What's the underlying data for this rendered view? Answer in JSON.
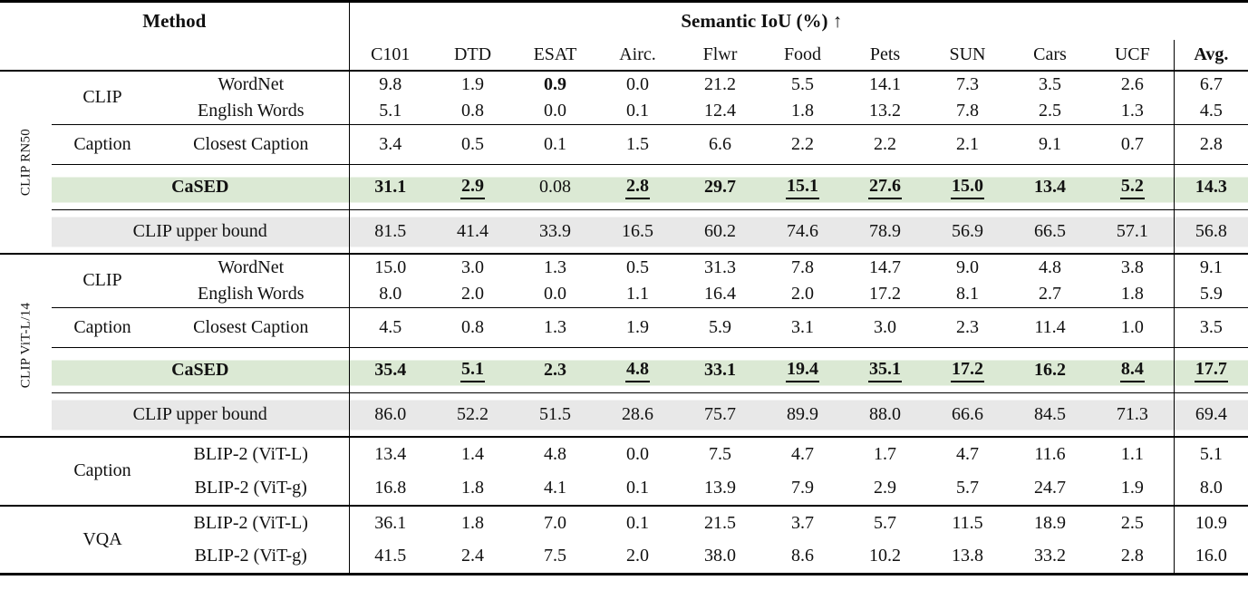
{
  "table": {
    "header": {
      "method_label": "Method",
      "metric_label": "Semantic IoU (%) ↑",
      "columns": [
        "C101",
        "DTD",
        "ESAT",
        "Airc.",
        "Flwr",
        "Food",
        "Pets",
        "SUN",
        "Cars",
        "UCF",
        "Avg."
      ]
    },
    "colors": {
      "highlight_green": "#dbe9d4",
      "highlight_gray": "#e8e8e8"
    },
    "sections": [
      {
        "side_label": "CLIP RN50",
        "blocks": [
          {
            "kind": "group-pair",
            "group": "CLIP",
            "rows": [
              {
                "method": "WordNet",
                "values": [
                  "9.8",
                  "1.9",
                  "0.9",
                  "0.0",
                  "21.2",
                  "5.5",
                  "14.1",
                  "7.3",
                  "3.5",
                  "2.6",
                  "6.7"
                ],
                "styles": [
                  "",
                  "",
                  "b",
                  "",
                  "",
                  "",
                  "",
                  "",
                  "",
                  "",
                  ""
                ]
              },
              {
                "method": "English Words",
                "values": [
                  "5.1",
                  "0.8",
                  "0.0",
                  "0.1",
                  "12.4",
                  "1.8",
                  "13.2",
                  "7.8",
                  "2.5",
                  "1.3",
                  "4.5"
                ],
                "styles": [
                  "",
                  "",
                  "",
                  "",
                  "",
                  "",
                  "",
                  "",
                  "",
                  "",
                  ""
                ]
              }
            ]
          },
          {
            "kind": "group-single",
            "group": "Caption",
            "rows": [
              {
                "method": "Closest Caption",
                "values": [
                  "3.4",
                  "0.5",
                  "0.1",
                  "1.5",
                  "6.6",
                  "2.2",
                  "2.2",
                  "2.1",
                  "9.1",
                  "0.7",
                  "2.8"
                ],
                "styles": [
                  "",
                  "",
                  "",
                  "",
                  "",
                  "",
                  "",
                  "",
                  "",
                  "",
                  ""
                ]
              }
            ]
          },
          {
            "kind": "merged",
            "highlight": "green",
            "rows": [
              {
                "method": "CaSED",
                "values": [
                  "31.1",
                  "2.9",
                  "0.08",
                  "2.8",
                  "29.7",
                  "15.1",
                  "27.6",
                  "15.0",
                  "13.4",
                  "5.2",
                  "14.3"
                ],
                "styles": [
                  "b",
                  "bu",
                  "",
                  "bu",
                  "b",
                  "bu",
                  "bu",
                  "bu",
                  "b",
                  "bu",
                  "b"
                ]
              }
            ]
          },
          {
            "kind": "merged",
            "highlight": "gray",
            "rows": [
              {
                "method": "CLIP upper bound",
                "values": [
                  "81.5",
                  "41.4",
                  "33.9",
                  "16.5",
                  "60.2",
                  "74.6",
                  "78.9",
                  "56.9",
                  "66.5",
                  "57.1",
                  "56.8"
                ],
                "styles": [
                  "",
                  "",
                  "",
                  "",
                  "",
                  "",
                  "",
                  "",
                  "",
                  "",
                  ""
                ]
              }
            ]
          }
        ]
      },
      {
        "side_label": "CLIP ViT-L/14",
        "blocks": [
          {
            "kind": "group-pair",
            "group": "CLIP",
            "rows": [
              {
                "method": "WordNet",
                "values": [
                  "15.0",
                  "3.0",
                  "1.3",
                  "0.5",
                  "31.3",
                  "7.8",
                  "14.7",
                  "9.0",
                  "4.8",
                  "3.8",
                  "9.1"
                ],
                "styles": [
                  "",
                  "",
                  "",
                  "",
                  "",
                  "",
                  "",
                  "",
                  "",
                  "",
                  ""
                ]
              },
              {
                "method": "English Words",
                "values": [
                  "8.0",
                  "2.0",
                  "0.0",
                  "1.1",
                  "16.4",
                  "2.0",
                  "17.2",
                  "8.1",
                  "2.7",
                  "1.8",
                  "5.9"
                ],
                "styles": [
                  "",
                  "",
                  "",
                  "",
                  "",
                  "",
                  "",
                  "",
                  "",
                  "",
                  ""
                ]
              }
            ]
          },
          {
            "kind": "group-single",
            "group": "Caption",
            "rows": [
              {
                "method": "Closest Caption",
                "values": [
                  "4.5",
                  "0.8",
                  "1.3",
                  "1.9",
                  "5.9",
                  "3.1",
                  "3.0",
                  "2.3",
                  "11.4",
                  "1.0",
                  "3.5"
                ],
                "styles": [
                  "",
                  "",
                  "",
                  "",
                  "",
                  "",
                  "",
                  "",
                  "",
                  "",
                  ""
                ]
              }
            ]
          },
          {
            "kind": "merged",
            "highlight": "green",
            "rows": [
              {
                "method": "CaSED",
                "values": [
                  "35.4",
                  "5.1",
                  "2.3",
                  "4.8",
                  "33.1",
                  "19.4",
                  "35.1",
                  "17.2",
                  "16.2",
                  "8.4",
                  "17.7"
                ],
                "styles": [
                  "b",
                  "bu",
                  "b",
                  "bu",
                  "b",
                  "bu",
                  "bu",
                  "bu",
                  "b",
                  "bu",
                  "bu"
                ]
              }
            ]
          },
          {
            "kind": "merged",
            "highlight": "gray",
            "rows": [
              {
                "method": "CLIP upper bound",
                "values": [
                  "86.0",
                  "52.2",
                  "51.5",
                  "28.6",
                  "75.7",
                  "89.9",
                  "88.0",
                  "66.6",
                  "84.5",
                  "71.3",
                  "69.4"
                ],
                "styles": [
                  "",
                  "",
                  "",
                  "",
                  "",
                  "",
                  "",
                  "",
                  "",
                  "",
                  ""
                ]
              }
            ]
          }
        ]
      },
      {
        "side_label": null,
        "blocks": [
          {
            "kind": "group-pair",
            "group": "Caption",
            "rows": [
              {
                "method": "BLIP-2 (ViT-L)",
                "values": [
                  "13.4",
                  "1.4",
                  "4.8",
                  "0.0",
                  "7.5",
                  "4.7",
                  "1.7",
                  "4.7",
                  "11.6",
                  "1.1",
                  "5.1"
                ],
                "styles": [
                  "",
                  "",
                  "",
                  "",
                  "",
                  "",
                  "",
                  "",
                  "",
                  "",
                  ""
                ]
              },
              {
                "method": "BLIP-2 (ViT-g)",
                "values": [
                  "16.8",
                  "1.8",
                  "4.1",
                  "0.1",
                  "13.9",
                  "7.9",
                  "2.9",
                  "5.7",
                  "24.7",
                  "1.9",
                  "8.0"
                ],
                "styles": [
                  "",
                  "",
                  "",
                  "",
                  "",
                  "",
                  "",
                  "",
                  "",
                  "",
                  ""
                ]
              }
            ]
          }
        ]
      },
      {
        "side_label": null,
        "blocks": [
          {
            "kind": "group-pair",
            "group": "VQA",
            "rows": [
              {
                "method": "BLIP-2 (ViT-L)",
                "values": [
                  "36.1",
                  "1.8",
                  "7.0",
                  "0.1",
                  "21.5",
                  "3.7",
                  "5.7",
                  "11.5",
                  "18.9",
                  "2.5",
                  "10.9"
                ],
                "styles": [
                  "",
                  "",
                  "",
                  "",
                  "",
                  "",
                  "",
                  "",
                  "",
                  "",
                  ""
                ]
              },
              {
                "method": "BLIP-2 (ViT-g)",
                "values": [
                  "41.5",
                  "2.4",
                  "7.5",
                  "2.0",
                  "38.0",
                  "8.6",
                  "10.2",
                  "13.8",
                  "33.2",
                  "2.8",
                  "16.0"
                ],
                "styles": [
                  "",
                  "",
                  "",
                  "",
                  "",
                  "",
                  "",
                  "",
                  "",
                  "",
                  ""
                ]
              }
            ]
          }
        ]
      }
    ]
  }
}
